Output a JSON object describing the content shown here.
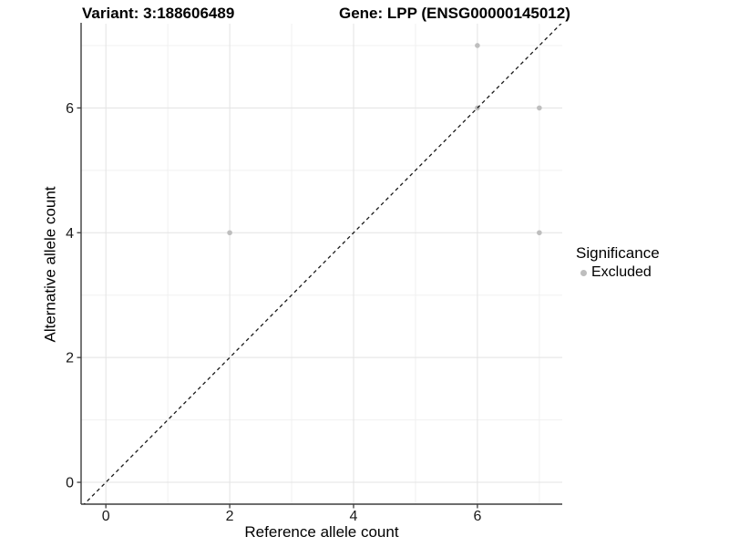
{
  "header": {
    "variant_title": "Variant: 3:188606489",
    "gene_title": "Gene: LPP (ENSG00000145012)"
  },
  "chart_data": {
    "type": "scatter",
    "xlabel": "Reference allele count",
    "ylabel": "Alternative allele count",
    "xlim": [
      -0.4,
      7.37
    ],
    "ylim": [
      -0.35,
      7.35
    ],
    "x_ticks": [
      0,
      2,
      4,
      6
    ],
    "y_ticks": [
      0,
      2,
      4,
      6
    ],
    "x_minor_ticks": [
      1,
      3,
      5,
      7
    ],
    "y_minor_ticks": [
      1,
      3,
      5,
      7
    ],
    "grid": "on",
    "series": [
      {
        "name": "Excluded",
        "color": "#bebebe",
        "marker": "circle",
        "points": [
          [
            2,
            4
          ],
          [
            6,
            6
          ],
          [
            6,
            7
          ],
          [
            7,
            4
          ],
          [
            7,
            6
          ]
        ]
      }
    ],
    "identity_line": {
      "slope": 1,
      "intercept": 0,
      "style": "dashed",
      "color": "#1a1a1a"
    },
    "legend": {
      "title": "Significance",
      "position": "right",
      "entries": [
        {
          "label": "Excluded",
          "color": "#bebebe"
        }
      ]
    },
    "colors": {
      "gridline_major": "#e3e3e3",
      "gridline_minor": "#f0f0f0",
      "axis_line": "#3d3d3d",
      "tick": "#3d3d3d",
      "point": "#bebebe"
    }
  }
}
